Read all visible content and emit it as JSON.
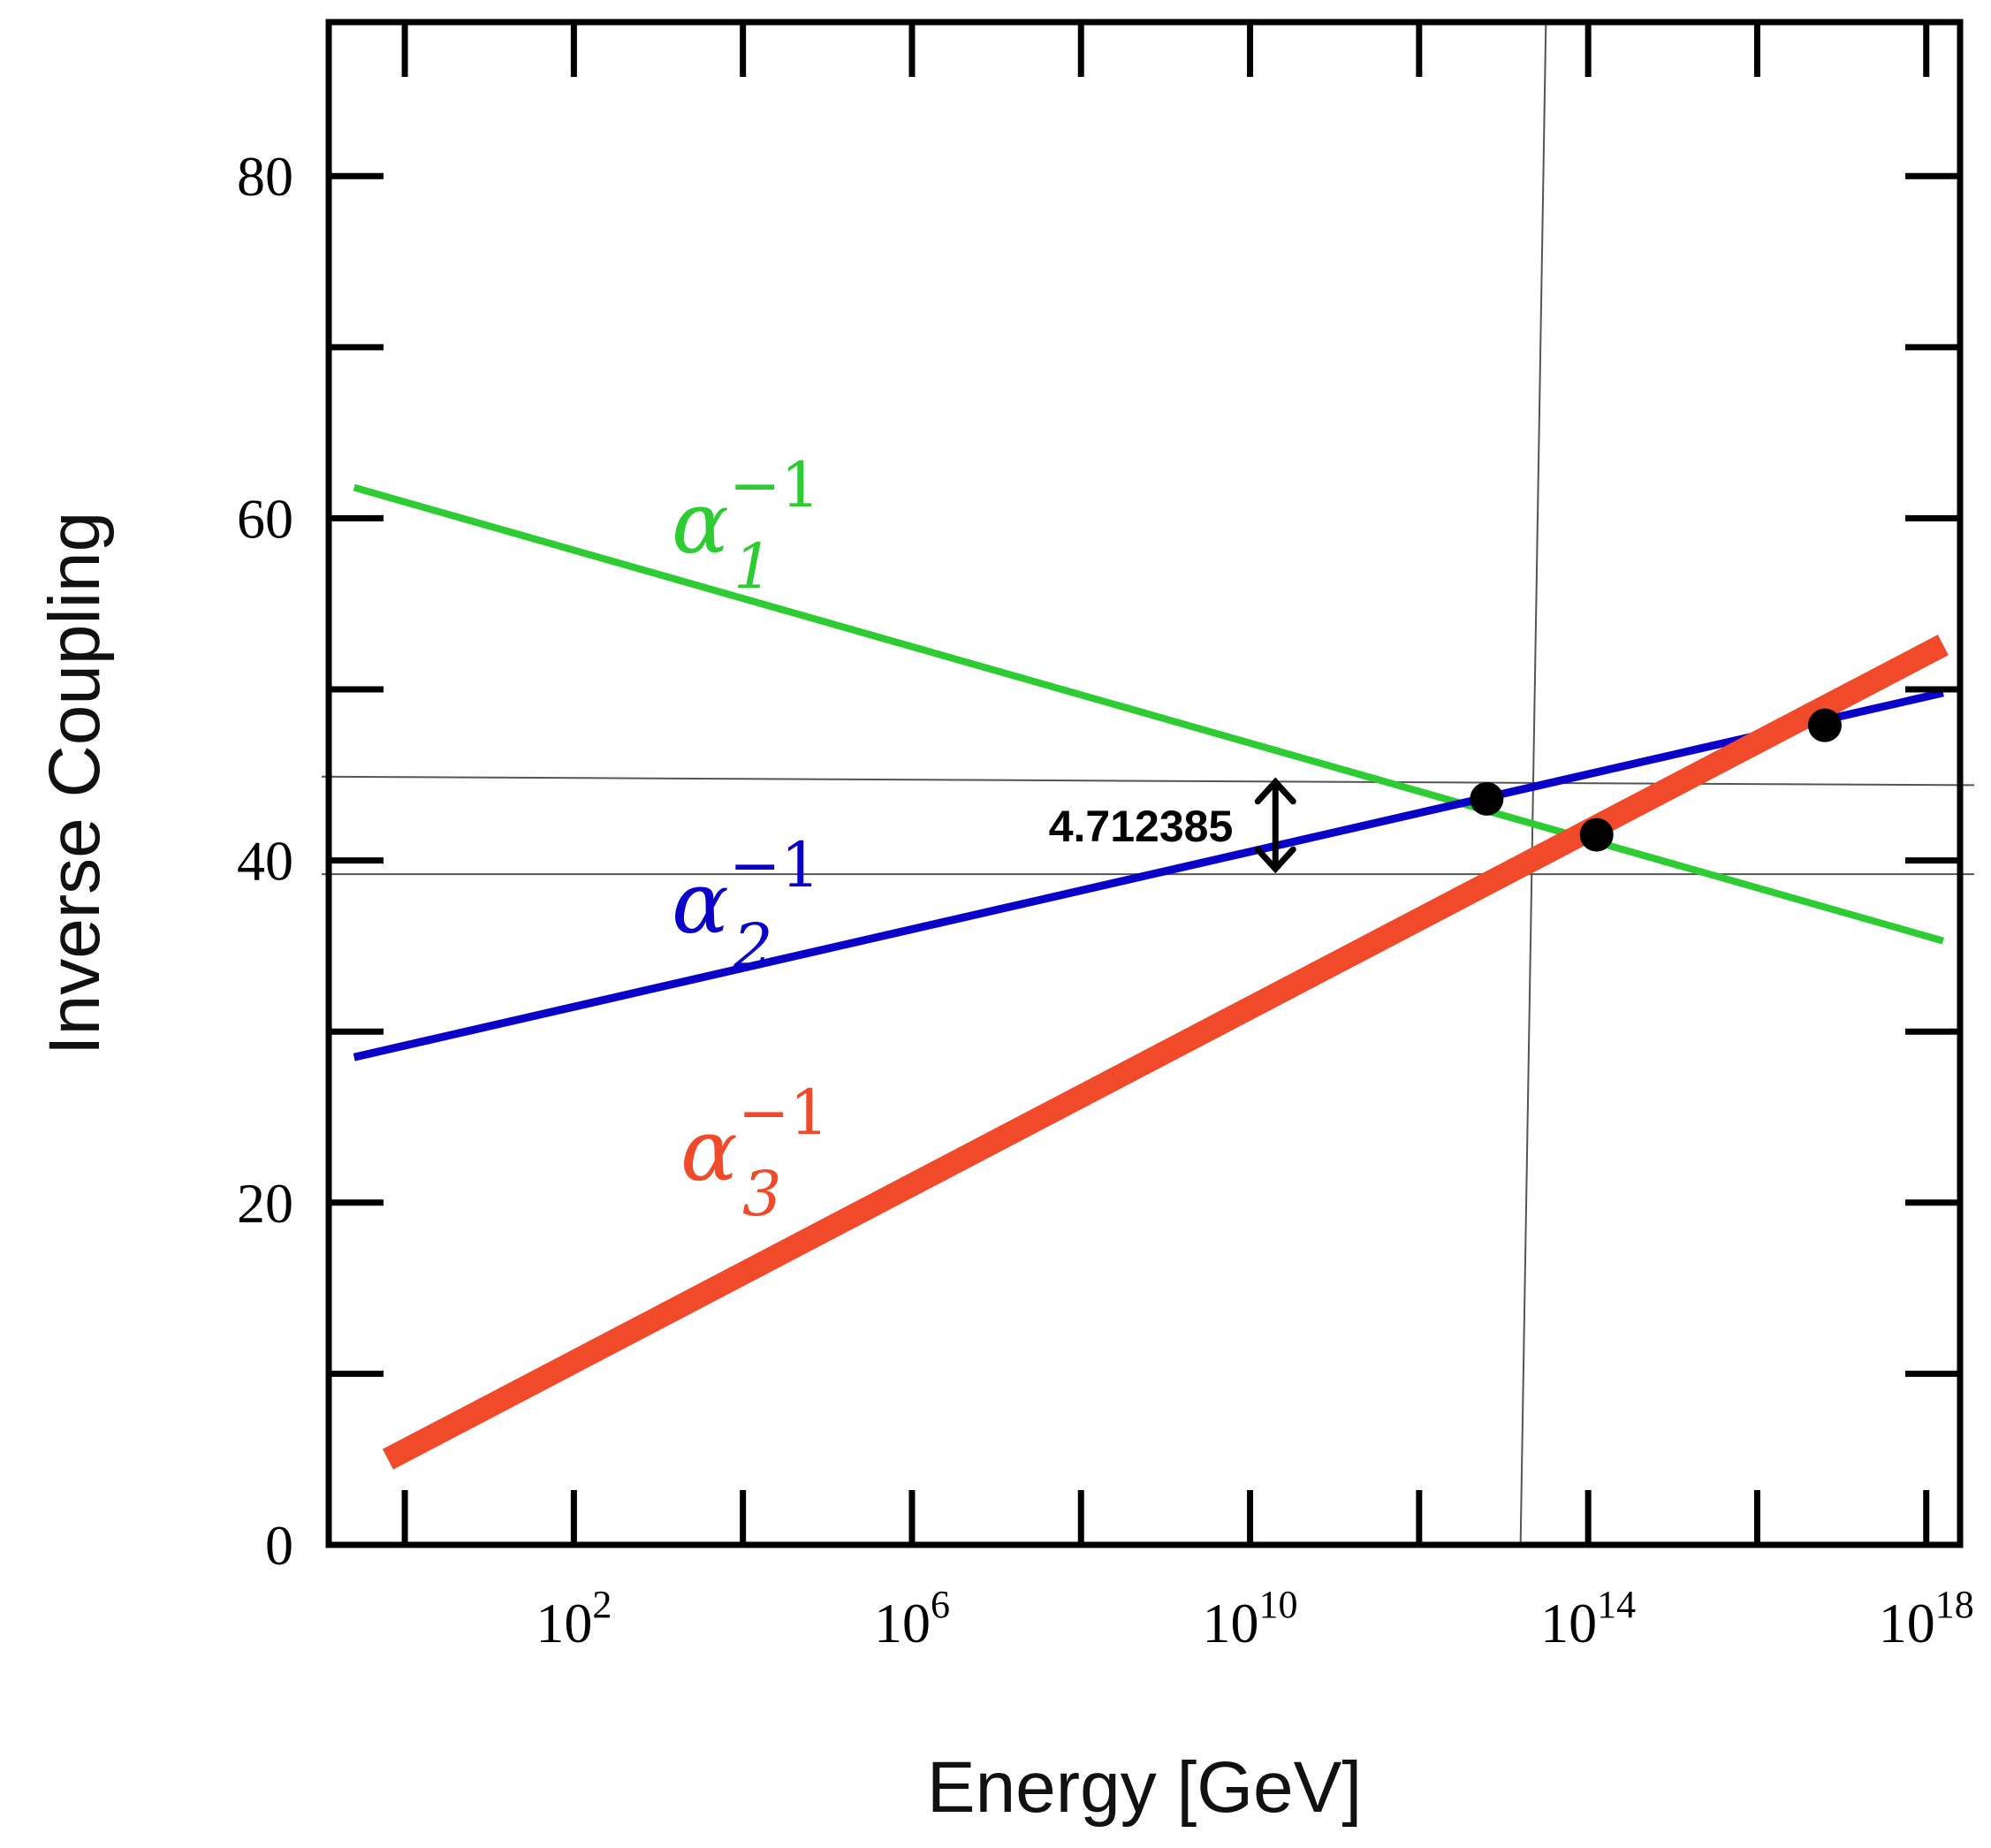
{
  "chart_data": {
    "type": "line",
    "title": "",
    "xlabel": "Energy [GeV]",
    "ylabel": "Inverse Coupling",
    "x_scale": "log10",
    "xlim_log10": [
      -0.9,
      18.4
    ],
    "ylim": [
      0,
      89
    ],
    "x_ticks": [
      {
        "exp": 2,
        "base": "10",
        "sup": "2"
      },
      {
        "exp": 6,
        "base": "10",
        "sup": "6"
      },
      {
        "exp": 10,
        "base": "10",
        "sup": "10"
      },
      {
        "exp": 14,
        "base": "10",
        "sup": "14"
      },
      {
        "exp": 18,
        "base": "10",
        "sup": "18"
      }
    ],
    "x_minor_ticks": [
      0,
      4,
      8,
      12,
      16
    ],
    "y_ticks": [
      {
        "value": 0,
        "label": "0"
      },
      {
        "value": 20,
        "label": "20"
      },
      {
        "value": 40,
        "label": "40"
      },
      {
        "value": 60,
        "label": "60"
      },
      {
        "value": 80,
        "label": "80"
      }
    ],
    "y_minor_ticks": [
      10,
      30,
      50,
      70
    ],
    "series": [
      {
        "name": "alpha1_inv",
        "label_base": "α",
        "label_sub": "1",
        "label_sup": "−1",
        "color": "#2ecc33",
        "width": 8,
        "x_log10": [
          -0.6,
          18.2
        ],
        "y": [
          61.8,
          35.3
        ]
      },
      {
        "name": "alpha2_inv",
        "label_base": "α",
        "label_sub": "2",
        "label_sup": "−1",
        "color": "#0a00c8",
        "width": 9,
        "x_log10": [
          -0.6,
          18.2
        ],
        "y": [
          28.5,
          49.8
        ]
      },
      {
        "name": "alpha3_inv",
        "label_base": "α",
        "label_sub": "3",
        "label_sup": "−1",
        "color": "#f04a2a",
        "width": 26,
        "x_log10": [
          -0.2,
          18.2
        ],
        "y": [
          5.0,
          52.6
        ]
      }
    ],
    "intersections": [
      {
        "pair": "1-2",
        "x_log10": 12.8,
        "y": 43.6
      },
      {
        "pair": "1-3",
        "x_log10": 14.1,
        "y": 41.5
      },
      {
        "pair": "2-3",
        "x_log10": 16.8,
        "y": 47.9
      }
    ],
    "reference_lines": {
      "horizontal": [
        {
          "x_log10": [
            -0.9,
            18.4
          ],
          "y": [
            44.9,
            44.4
          ]
        },
        {
          "x_log10": [
            -0.9,
            18.4
          ],
          "y": [
            39.2,
            39.2
          ]
        }
      ],
      "vertical": {
        "x_log10": [
          13.5,
          13.2
        ],
        "y": [
          89,
          0
        ]
      }
    },
    "annotation": {
      "text": "4.712385",
      "x_log10": 10.3,
      "y_top": 44.9,
      "y_bottom": 39.2
    }
  }
}
